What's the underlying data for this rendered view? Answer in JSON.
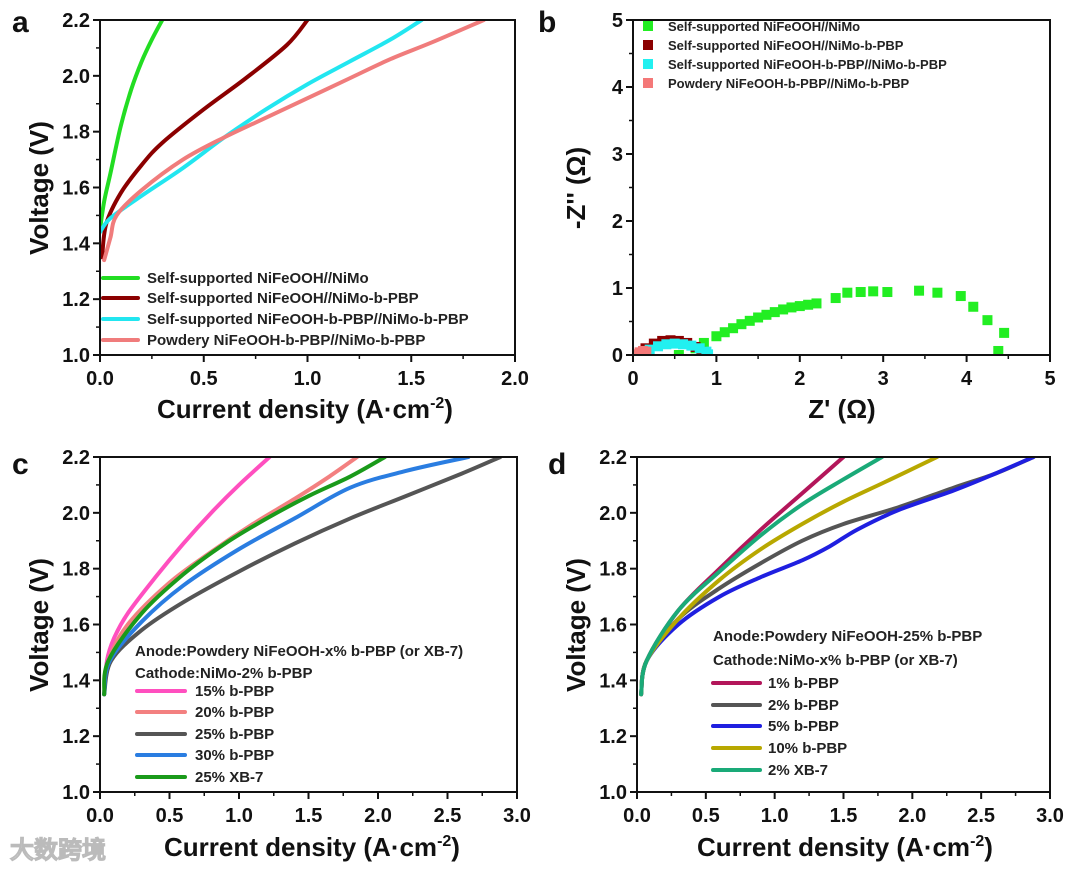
{
  "watermark": "大数跨境",
  "chart_data": [
    {
      "id": "a",
      "type": "line",
      "panel_label": "a",
      "xlabel_main": "Current density (A·cm",
      "xlabel_sup": "-2",
      "xlabel_end": ")",
      "ylabel": "Voltage (V)",
      "xlim": [
        0,
        2.0
      ],
      "ylim": [
        1.0,
        2.2
      ],
      "xticks": [
        "0.0",
        "0.5",
        "1.0",
        "1.5",
        "2.0"
      ],
      "yticks": [
        "1.0",
        "1.2",
        "1.4",
        "1.6",
        "1.8",
        "2.0",
        "2.2"
      ],
      "legend_placement": "bottom-left",
      "series": [
        {
          "name": "Self-supported NiFeOOH//NiMo",
          "color": "#22dd22",
          "x": [
            0,
            0.02,
            0.05,
            0.1,
            0.15,
            0.2,
            0.25,
            0.3
          ],
          "y": [
            1.45,
            1.55,
            1.65,
            1.82,
            1.95,
            2.05,
            2.13,
            2.2
          ]
        },
        {
          "name": "Self-supported NiFeOOH//NiMo-b-PBP",
          "color": "#8b0000",
          "x": [
            0.01,
            0.03,
            0.1,
            0.2,
            0.3,
            0.5,
            0.7,
            0.9,
            1.0
          ],
          "y": [
            1.35,
            1.47,
            1.58,
            1.68,
            1.76,
            1.88,
            1.99,
            2.11,
            2.2
          ]
        },
        {
          "name": "Self-supported NiFeOOH-b-PBP//NiMo-b-PBP",
          "color": "#22e6f0",
          "x": [
            0,
            0.05,
            0.2,
            0.4,
            0.6,
            0.8,
            1.0,
            1.2,
            1.4,
            1.55
          ],
          "y": [
            1.44,
            1.49,
            1.57,
            1.67,
            1.78,
            1.88,
            1.97,
            2.05,
            2.13,
            2.2
          ]
        },
        {
          "name": "Powdery NiFeOOH-b-PBP//NiMo-b-PBP",
          "color": "#f07c7c",
          "x": [
            0.02,
            0.05,
            0.08,
            0.2,
            0.4,
            0.6,
            0.8,
            1.0,
            1.2,
            1.4,
            1.6,
            1.85
          ],
          "y": [
            1.34,
            1.42,
            1.5,
            1.59,
            1.7,
            1.78,
            1.85,
            1.92,
            1.99,
            2.06,
            2.12,
            2.2
          ]
        }
      ]
    },
    {
      "id": "b",
      "type": "scatter",
      "panel_label": "b",
      "xlabel": "Z' (Ω)",
      "ylabel": "-Z'' (Ω)",
      "xlim": [
        0,
        5
      ],
      "ylim": [
        0,
        5
      ],
      "xticks": [
        "0",
        "1",
        "2",
        "3",
        "4",
        "5"
      ],
      "yticks": [
        "0",
        "1",
        "2",
        "3",
        "4",
        "5"
      ],
      "legend_placement": "top-left",
      "series": [
        {
          "name": "Self-supported NiFeOOH//NiMo",
          "color": "#22ee22",
          "x": [
            0.55,
            0.75,
            0.85,
            1.0,
            1.1,
            1.2,
            1.3,
            1.4,
            1.5,
            1.6,
            1.7,
            1.8,
            1.9,
            2.0,
            2.1,
            2.2,
            2.43,
            2.57,
            2.73,
            2.88,
            3.05,
            3.43,
            3.65,
            3.93,
            4.08,
            4.25,
            4.45,
            4.38
          ],
          "y": [
            0.0,
            0.1,
            0.18,
            0.28,
            0.34,
            0.4,
            0.46,
            0.51,
            0.56,
            0.6,
            0.64,
            0.68,
            0.71,
            0.73,
            0.75,
            0.77,
            0.85,
            0.93,
            0.94,
            0.95,
            0.94,
            0.96,
            0.93,
            0.88,
            0.72,
            0.52,
            0.33,
            0.06
          ]
        },
        {
          "name": "Self-supported NiFeOOH//NiMo-b-PBP",
          "color": "#8b0000",
          "x": [
            0.08,
            0.15,
            0.25,
            0.35,
            0.45,
            0.55,
            0.65,
            0.75,
            0.82
          ],
          "y": [
            0.02,
            0.1,
            0.17,
            0.21,
            0.22,
            0.21,
            0.18,
            0.12,
            0.05
          ]
        },
        {
          "name": "Self-supported NiFeOOH-b-PBP//NiMo-b-PBP",
          "color": "#22f0f0",
          "x": [
            0.12,
            0.2,
            0.3,
            0.4,
            0.5,
            0.6,
            0.7,
            0.8,
            0.88,
            0.9
          ],
          "y": [
            0.02,
            0.08,
            0.13,
            0.16,
            0.17,
            0.16,
            0.14,
            0.1,
            0.05,
            0.01
          ]
        },
        {
          "name": "Powdery NiFeOOH-b-PBP//NiMo-b-PBP",
          "color": "#f47878",
          "x": [
            0.05,
            0.08,
            0.12,
            0.16
          ],
          "y": [
            0.01,
            0.04,
            0.06,
            0.05
          ]
        }
      ]
    },
    {
      "id": "c",
      "type": "line",
      "panel_label": "c",
      "xlabel_main": "Current density (A·cm",
      "xlabel_sup": "-2",
      "xlabel_end": ")",
      "ylabel": "Voltage (V)",
      "xlim": [
        0,
        3.0
      ],
      "ylim": [
        1.0,
        2.2
      ],
      "xticks": [
        "0.0",
        "0.5",
        "1.0",
        "1.5",
        "2.0",
        "2.5",
        "3.0"
      ],
      "yticks": [
        "1.0",
        "1.2",
        "1.4",
        "1.6",
        "1.8",
        "2.0",
        "2.2"
      ],
      "annotations": [
        "Anode:Powdery NiFeOOH-x% b-PBP (or XB-7)",
        "Cathode:NiMo-2% b-PBP"
      ],
      "legend_placement": "bottom-left",
      "series": [
        {
          "name": "15% b-PBP",
          "color": "#ff4fbf",
          "x": [
            0.03,
            0.05,
            0.1,
            0.2,
            0.4,
            0.6,
            0.8,
            1.0,
            1.22
          ],
          "y": [
            1.35,
            1.47,
            1.55,
            1.64,
            1.77,
            1.89,
            2.0,
            2.1,
            2.2
          ]
        },
        {
          "name": "20% b-PBP",
          "color": "#f38080",
          "x": [
            0.03,
            0.06,
            0.2,
            0.5,
            0.8,
            1.1,
            1.4,
            1.65,
            1.85
          ],
          "y": [
            1.35,
            1.47,
            1.6,
            1.75,
            1.86,
            1.96,
            2.05,
            2.13,
            2.2
          ]
        },
        {
          "name": "25% b-PBP",
          "color": "#555555",
          "x": [
            0.03,
            0.08,
            0.3,
            0.6,
            1.0,
            1.4,
            1.8,
            2.2,
            2.6,
            2.88
          ],
          "y": [
            1.35,
            1.47,
            1.58,
            1.68,
            1.79,
            1.89,
            1.98,
            2.06,
            2.14,
            2.2
          ]
        },
        {
          "name": "30% b-PBP",
          "color": "#2a7de1",
          "x": [
            0.03,
            0.07,
            0.3,
            0.6,
            1.0,
            1.4,
            1.8,
            2.2,
            2.65
          ],
          "y": [
            1.35,
            1.47,
            1.61,
            1.74,
            1.87,
            1.98,
            2.09,
            2.15,
            2.2
          ]
        },
        {
          "name": "25% XB-7",
          "color": "#1a9a1a",
          "x": [
            0.03,
            0.06,
            0.3,
            0.6,
            0.9,
            1.2,
            1.5,
            1.8,
            2.05
          ],
          "y": [
            1.35,
            1.47,
            1.64,
            1.78,
            1.89,
            1.98,
            2.06,
            2.13,
            2.2
          ]
        }
      ]
    },
    {
      "id": "d",
      "type": "line",
      "panel_label": "d",
      "xlabel_main": "Current density (A·cm",
      "xlabel_sup": "-2",
      "xlabel_end": ")",
      "ylabel": "Voltage (V)",
      "xlim": [
        0,
        3.0
      ],
      "ylim": [
        1.0,
        2.2
      ],
      "xticks": [
        "0.0",
        "0.5",
        "1.0",
        "1.5",
        "2.0",
        "2.5",
        "3.0"
      ],
      "yticks": [
        "1.0",
        "1.2",
        "1.4",
        "1.6",
        "1.8",
        "2.0",
        "2.2"
      ],
      "annotations": [
        "Anode:Powdery NiFeOOH-25% b-PBP",
        "Cathode:NiMo-x% b-PBP (or XB-7)"
      ],
      "legend_placement": "bottom-left",
      "series": [
        {
          "name": "1% b-PBP",
          "color": "#b3165a",
          "x": [
            0.03,
            0.07,
            0.3,
            0.6,
            0.9,
            1.2,
            1.5
          ],
          "y": [
            1.35,
            1.47,
            1.65,
            1.8,
            1.94,
            2.07,
            2.2
          ]
        },
        {
          "name": "2% b-PBP",
          "color": "#555555",
          "x": [
            0.03,
            0.07,
            0.3,
            0.6,
            0.9,
            1.2,
            1.5,
            1.9,
            2.3,
            2.6,
            2.88
          ],
          "y": [
            1.35,
            1.47,
            1.62,
            1.73,
            1.82,
            1.9,
            1.96,
            2.02,
            2.09,
            2.14,
            2.2
          ]
        },
        {
          "name": "5% b-PBP",
          "color": "#1f1fe0",
          "x": [
            0.03,
            0.07,
            0.3,
            0.6,
            0.9,
            1.2,
            1.4,
            1.6,
            1.9,
            2.3,
            2.6,
            2.88
          ],
          "y": [
            1.35,
            1.47,
            1.6,
            1.7,
            1.77,
            1.83,
            1.88,
            1.94,
            2.01,
            2.08,
            2.14,
            2.2
          ]
        },
        {
          "name": "10% b-PBP",
          "color": "#b8a800",
          "x": [
            0.03,
            0.07,
            0.3,
            0.6,
            0.9,
            1.2,
            1.5,
            1.8,
            2.18
          ],
          "y": [
            1.35,
            1.47,
            1.62,
            1.76,
            1.87,
            1.96,
            2.04,
            2.11,
            2.2
          ]
        },
        {
          "name": "2% XB-7",
          "color": "#1aaa78",
          "x": [
            0.03,
            0.07,
            0.3,
            0.6,
            0.9,
            1.2,
            1.5,
            1.78
          ],
          "y": [
            1.35,
            1.47,
            1.65,
            1.79,
            1.92,
            2.03,
            2.12,
            2.2
          ]
        }
      ]
    }
  ]
}
